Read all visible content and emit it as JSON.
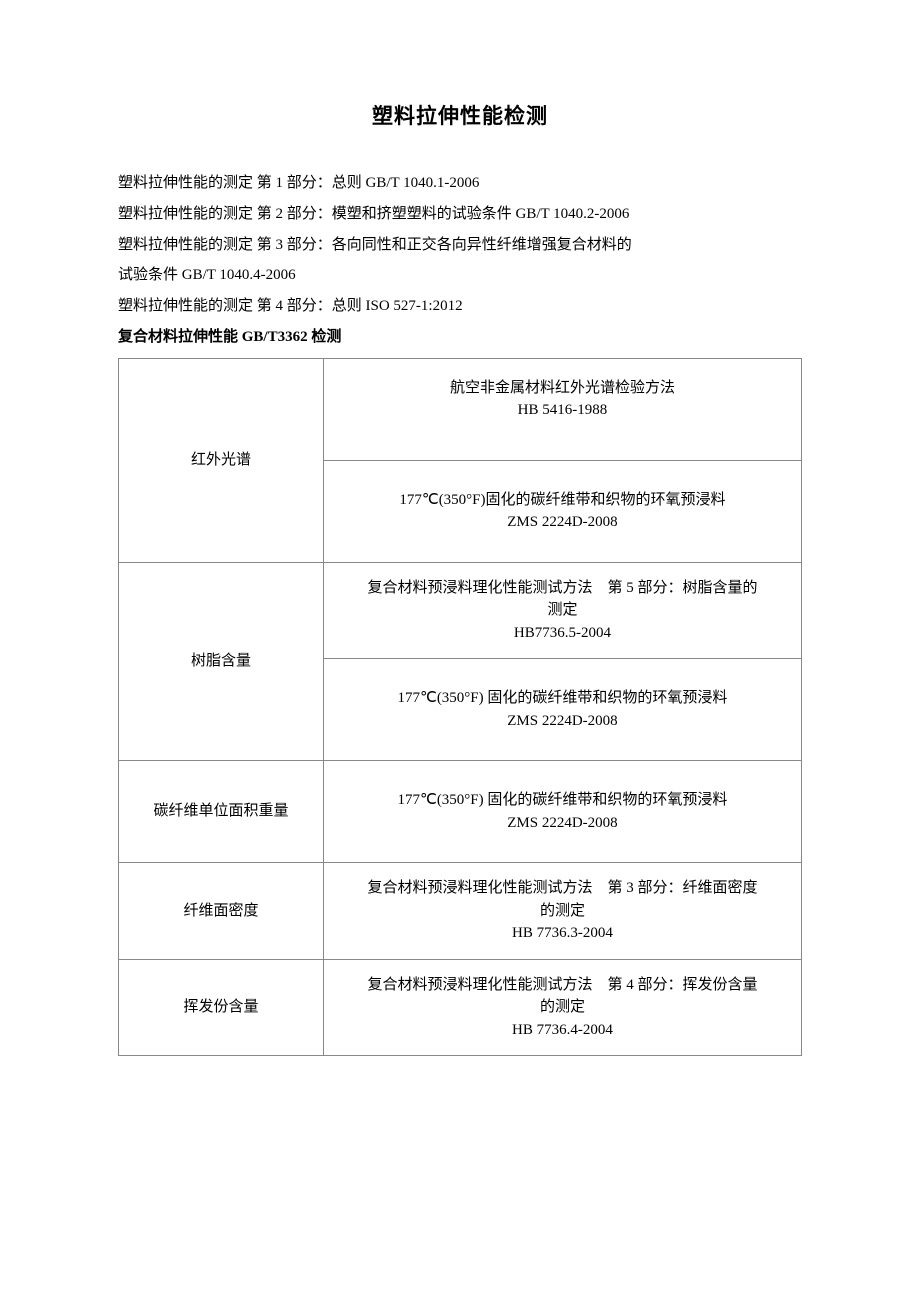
{
  "title": "塑料拉伸性能检测",
  "paragraphs": [
    "塑料拉伸性能的测定 第 1 部分：总则 GB/T 1040.1-2006",
    "塑料拉伸性能的测定 第 2 部分：模塑和挤塑塑料的试验条件 GB/T 1040.2-2006",
    "塑料拉伸性能的测定 第 3 部分：各向同性和正交各向异性纤维增强复合材料的",
    "试验条件 GB/T 1040.4-2006",
    "塑料拉伸性能的测定 第 4 部分：总则 ISO 527-1:2012"
  ],
  "bold_line": "复合材料拉伸性能 GB/T3362 检测",
  "table": {
    "rows": [
      {
        "left": "红外光谱",
        "left_rowspan": 2,
        "right_lines": [
          "航空非金属材料红外光谱检验方法",
          "HB 5416-1988"
        ],
        "extra_padding": "18px 8px 38px 8px"
      },
      {
        "left": null,
        "right_lines": [
          "177℃(350°F)固化的碳纤维带和织物的环氧预浸料",
          "ZMS 2224D-2008"
        ],
        "extra_padding": "28px 8px 28px 8px"
      },
      {
        "left": "树脂含量",
        "left_rowspan": 2,
        "right_lines": [
          "复合材料预浸料理化性能测试方法　第 5 部分：树脂含量的",
          "测定",
          "HB7736.5-2004"
        ],
        "extra_padding": "14px 8px 14px 8px"
      },
      {
        "left": null,
        "right_lines": [
          "177℃(350°F) 固化的碳纤维带和织物的环氧预浸料",
          "ZMS 2224D-2008"
        ],
        "extra_padding": "28px 8px 28px 8px"
      },
      {
        "left": "碳纤维单位面积重量",
        "left_rowspan": 1,
        "right_lines": [
          "177℃(350°F) 固化的碳纤维带和织物的环氧预浸料",
          "ZMS 2224D-2008"
        ],
        "extra_padding": "28px 8px 28px 8px"
      },
      {
        "left": "纤维面密度",
        "left_rowspan": 1,
        "right_lines": [
          "复合材料预浸料理化性能测试方法　第 3 部分：纤维面密度",
          "的测定",
          "HB 7736.3-2004"
        ],
        "extra_padding": "14px 8px 14px 8px"
      },
      {
        "left": "挥发份含量",
        "left_rowspan": 1,
        "right_lines": [
          "复合材料预浸料理化性能测试方法　第 4 部分：挥发份含量",
          "的测定",
          "HB 7736.4-2004"
        ],
        "extra_padding": "14px 8px 14px 8px"
      }
    ]
  }
}
